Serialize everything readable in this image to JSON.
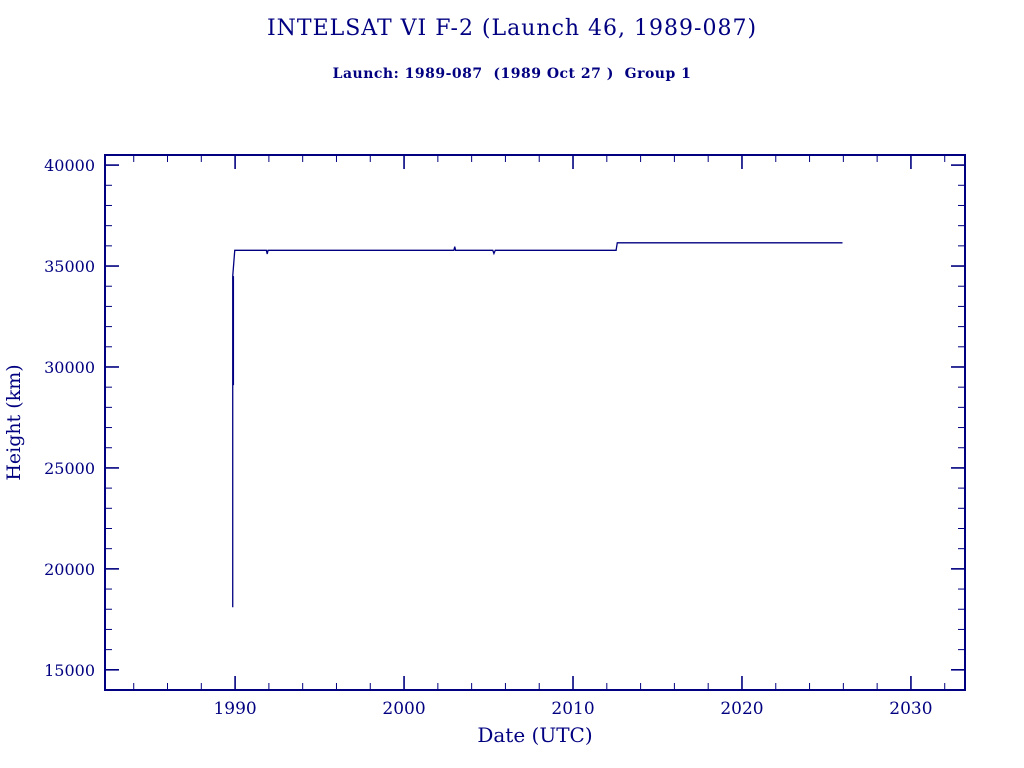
{
  "page": {
    "background": "#ffffff",
    "accent": "#000080"
  },
  "chart_data": {
    "type": "line",
    "title": "INTELSAT VI F-2 (Launch 46, 1989-087)",
    "subtitle": "Launch: 1989-087  (1989 Oct 27 )  Group 1",
    "xlabel": "Date (UTC)",
    "ylabel": "Height (km)",
    "xlim": [
      1982.3,
      2033.2
    ],
    "ylim": [
      14000,
      40500
    ],
    "xticks": [
      1990,
      2000,
      2010,
      2020,
      2030
    ],
    "x_minor_step": 2,
    "yticks": [
      15000,
      20000,
      25000,
      30000,
      35000,
      40000
    ],
    "y_minor_step": 1000,
    "grid": false,
    "legend": "none",
    "line_color": "#000080",
    "series": [
      {
        "name": "height",
        "points": [
          [
            1989.86,
            18100
          ],
          [
            1989.86,
            34500
          ],
          [
            1989.98,
            35780
          ],
          [
            1991.85,
            35780
          ],
          [
            1991.9,
            35600
          ],
          [
            1991.95,
            35780
          ],
          [
            2002.95,
            35780
          ],
          [
            2003.0,
            35960
          ],
          [
            2003.05,
            35780
          ],
          [
            2005.25,
            35780
          ],
          [
            2005.32,
            35620
          ],
          [
            2005.4,
            35780
          ],
          [
            2012.55,
            35780
          ],
          [
            2012.62,
            36150
          ],
          [
            2025.95,
            36150
          ]
        ]
      },
      {
        "name": "launch-transfer-spike",
        "points": [
          [
            1989.9,
            29100
          ],
          [
            1989.9,
            34500
          ]
        ]
      }
    ]
  }
}
